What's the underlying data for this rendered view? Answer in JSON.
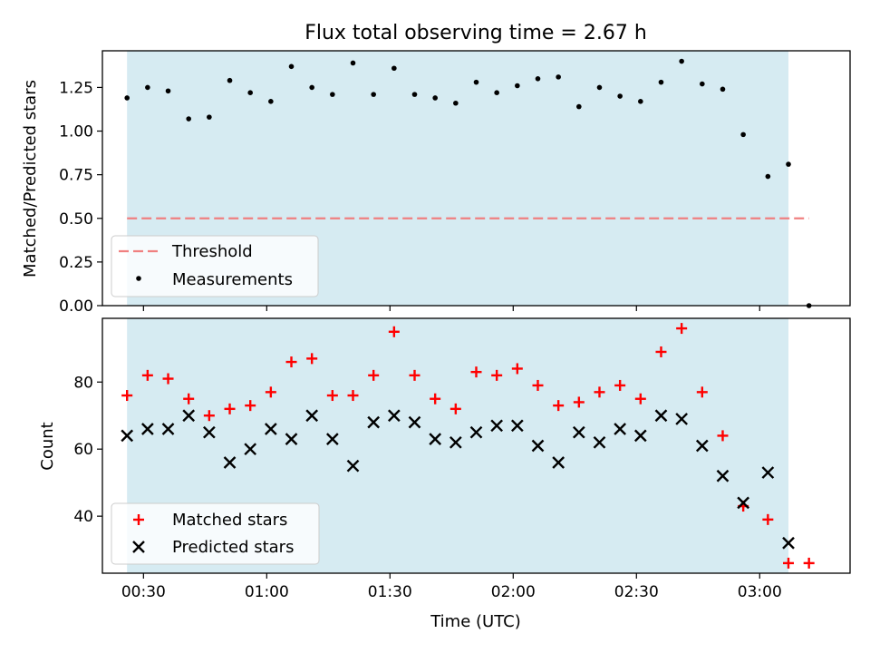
{
  "title": "Flux total observing time = 2.67 h",
  "xlabel": "Time (UTC)",
  "xticks": [
    "00:30",
    "01:00",
    "01:30",
    "02:00",
    "02:30",
    "03:00"
  ],
  "colors": {
    "shade": "#add8e6",
    "threshold": "#f08080",
    "matched": "#ff0000",
    "predicted": "#000000",
    "measurement": "#000000"
  },
  "chart_data": [
    {
      "type": "scatter",
      "panel": "top",
      "ylabel": "Matched/Predicted stars",
      "ylim": [
        0,
        1.46
      ],
      "xlim": [
        "00:20",
        "03:22"
      ],
      "yticks": [
        "0.00",
        "0.25",
        "0.50",
        "0.75",
        "1.00",
        "1.25"
      ],
      "shaded_interval": [
        "00:26",
        "03:07"
      ],
      "legend": "lower-left",
      "threshold": {
        "name": "Threshold",
        "value": 0.5,
        "x_range": [
          "00:26",
          "03:12"
        ],
        "style": "dashed"
      },
      "series": [
        {
          "name": "Measurements",
          "x": [
            "00:26",
            "00:31",
            "00:36",
            "00:41",
            "00:46",
            "00:51",
            "00:56",
            "01:01",
            "01:06",
            "01:11",
            "01:16",
            "01:21",
            "01:26",
            "01:31",
            "01:36",
            "01:41",
            "01:46",
            "01:51",
            "01:56",
            "02:01",
            "02:06",
            "02:11",
            "02:16",
            "02:21",
            "02:26",
            "02:31",
            "02:36",
            "02:41",
            "02:46",
            "02:51",
            "02:56",
            "03:02",
            "03:07",
            "03:12"
          ],
          "y": [
            1.19,
            1.25,
            1.23,
            1.07,
            1.08,
            1.29,
            1.22,
            1.17,
            1.37,
            1.25,
            1.21,
            1.39,
            1.21,
            1.36,
            1.21,
            1.19,
            1.16,
            1.28,
            1.22,
            1.26,
            1.3,
            1.31,
            1.14,
            1.25,
            1.2,
            1.17,
            1.28,
            1.4,
            1.27,
            1.24,
            0.98,
            0.74,
            0.81,
            0.0
          ]
        }
      ]
    },
    {
      "type": "scatter",
      "panel": "bottom",
      "ylabel": "Count",
      "ylim": [
        23,
        99
      ],
      "xlim": [
        "00:20",
        "03:22"
      ],
      "yticks": [
        "40",
        "60",
        "80"
      ],
      "shaded_interval": [
        "00:26",
        "03:07"
      ],
      "legend": "lower-left",
      "series": [
        {
          "name": "Matched stars",
          "marker": "+",
          "x": [
            "00:26",
            "00:31",
            "00:36",
            "00:41",
            "00:46",
            "00:51",
            "00:56",
            "01:01",
            "01:06",
            "01:11",
            "01:16",
            "01:21",
            "01:26",
            "01:31",
            "01:36",
            "01:41",
            "01:46",
            "01:51",
            "01:56",
            "02:01",
            "02:06",
            "02:11",
            "02:16",
            "02:21",
            "02:26",
            "02:31",
            "02:36",
            "02:41",
            "02:46",
            "02:51",
            "02:56",
            "03:02",
            "03:07",
            "03:12"
          ],
          "y": [
            76,
            82,
            81,
            75,
            70,
            72,
            73,
            77,
            86,
            87,
            76,
            76,
            82,
            95,
            82,
            75,
            72,
            83,
            82,
            84,
            79,
            73,
            74,
            77,
            79,
            75,
            89,
            96,
            77,
            64,
            43,
            39,
            26,
            26
          ]
        },
        {
          "name": "Predicted stars",
          "marker": "x",
          "x": [
            "00:26",
            "00:31",
            "00:36",
            "00:41",
            "00:46",
            "00:51",
            "00:56",
            "01:01",
            "01:06",
            "01:11",
            "01:16",
            "01:21",
            "01:26",
            "01:31",
            "01:36",
            "01:41",
            "01:46",
            "01:51",
            "01:56",
            "02:01",
            "02:06",
            "02:11",
            "02:16",
            "02:21",
            "02:26",
            "02:31",
            "02:36",
            "02:41",
            "02:46",
            "02:51",
            "02:56",
            "03:02",
            "03:07"
          ],
          "y": [
            64,
            66,
            66,
            70,
            65,
            56,
            60,
            66,
            63,
            70,
            63,
            55,
            68,
            70,
            68,
            63,
            62,
            65,
            67,
            67,
            61,
            56,
            65,
            62,
            66,
            64,
            70,
            69,
            61,
            52,
            44,
            53,
            32
          ]
        }
      ]
    }
  ]
}
